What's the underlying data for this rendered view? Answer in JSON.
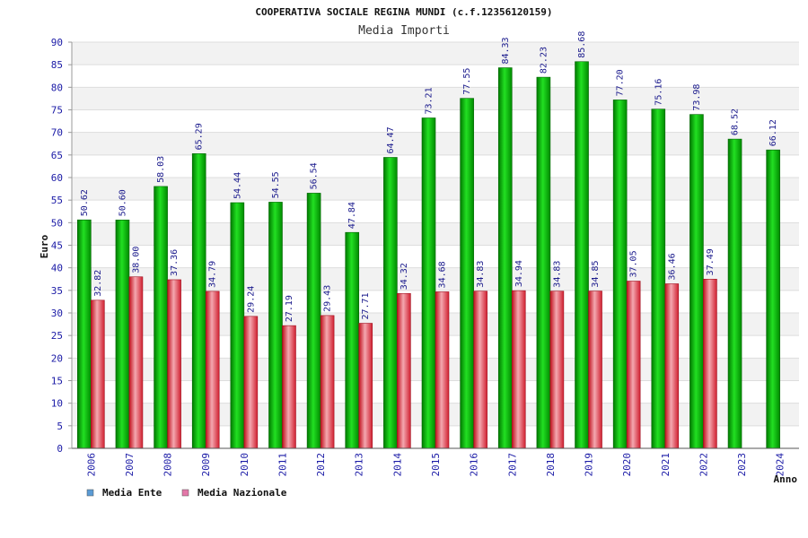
{
  "chart_data": {
    "type": "bar",
    "title": "COOPERATIVA SOCIALE REGINA MUNDI (c.f.12356120159)",
    "subtitle": "Media Importi",
    "ylabel": "Euro",
    "xlabel": "Anno",
    "ylim": [
      0,
      90
    ],
    "ystep": 5,
    "grid": true,
    "legend_position": "bottom-left",
    "categories": [
      "2006",
      "2007",
      "2008",
      "2009",
      "2010",
      "2011",
      "2012",
      "2013",
      "2014",
      "2015",
      "2016",
      "2017",
      "2018",
      "2019",
      "2020",
      "2021",
      "2022",
      "2023",
      "2024"
    ],
    "series": [
      {
        "name": "Media Ente",
        "legend_color": "#5b9bd5",
        "bar_color": "#00a000",
        "values": [
          50.62,
          50.6,
          58.03,
          65.29,
          54.44,
          54.55,
          56.54,
          47.84,
          64.47,
          73.21,
          77.55,
          84.33,
          82.23,
          85.68,
          77.2,
          75.16,
          73.98,
          68.52,
          66.12
        ],
        "labels": [
          "50.62",
          "50.60",
          "58.03",
          "65.29",
          "54.44",
          "54.55",
          "56.54",
          "47.84",
          "64.47",
          "73.21",
          "77.55",
          "84.33",
          "82.23",
          "85.68",
          "77.20",
          "75.16",
          "73.98",
          "68.52",
          "66.12"
        ]
      },
      {
        "name": "Media Nazionale",
        "legend_color": "#e377a8",
        "bar_color": "#e0303c",
        "values": [
          32.82,
          38.0,
          37.36,
          34.79,
          29.24,
          27.19,
          29.43,
          27.71,
          34.32,
          34.68,
          34.83,
          34.94,
          34.83,
          34.85,
          37.05,
          36.46,
          37.49,
          null,
          null
        ],
        "labels": [
          "32.82",
          "38.00",
          "37.36",
          "34.79",
          "29.24",
          "27.19",
          "29.43",
          "27.71",
          "34.32",
          "34.68",
          "34.83",
          "34.94",
          "34.83",
          "34.85",
          "37.05",
          "36.46",
          "37.49",
          "",
          ""
        ]
      }
    ]
  }
}
